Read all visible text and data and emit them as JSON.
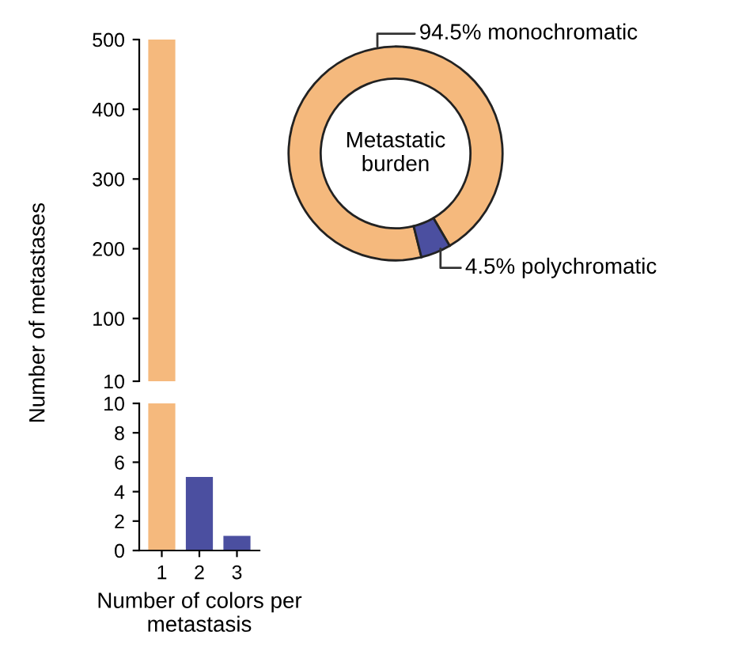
{
  "chart_data": [
    {
      "type": "bar",
      "categories": [
        null,
        null,
        null
      ],
      "values": [
        500,
        null,
        null
      ],
      "base": [
        10,
        null,
        null
      ],
      "colors": [
        "#f5b97d",
        "#4b4fa0",
        "#4b4fa0"
      ],
      "ylim": [
        10,
        500
      ],
      "yticks": [
        10,
        100,
        200,
        300,
        400,
        500
      ],
      "ylabel": "Number of metastases",
      "tick_labels": "y",
      "grid": false,
      "legend": false
    },
    {
      "type": "bar",
      "categories": [
        "1",
        "2",
        "3"
      ],
      "values": [
        10,
        5,
        1
      ],
      "colors": [
        "#f5b97d",
        "#4b4fa0",
        "#4b4fa0"
      ],
      "ylim": [
        0,
        10
      ],
      "yticks": [
        0,
        2,
        4,
        6,
        8,
        10
      ],
      "xlabel": "Number of colors per\nmetastasis",
      "grid": false,
      "legend": false
    },
    {
      "type": "donut",
      "title": "Metastatic\nburden",
      "categories": [
        "monochromatic",
        "polychromatic"
      ],
      "values": [
        94.5,
        4.5
      ],
      "value_labels": [
        "94.5%",
        "4.5%"
      ],
      "colors": [
        "#f5b97d",
        "#4b4fa0"
      ],
      "legend": false
    }
  ]
}
